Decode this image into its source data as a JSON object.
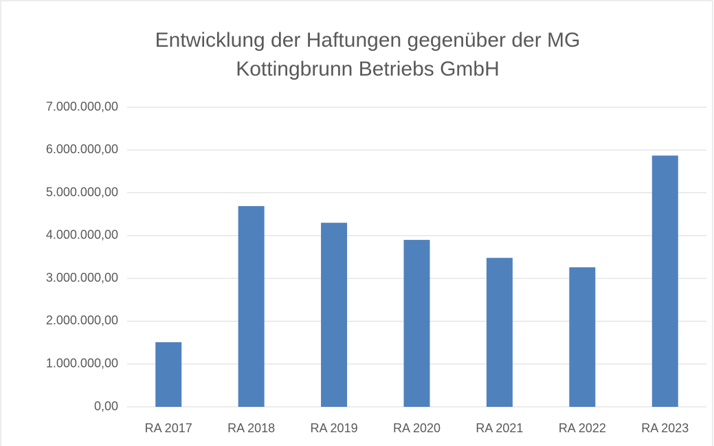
{
  "chart_data": {
    "type": "bar",
    "title": [
      "Entwicklung der Haftungen gegenüber der MG",
      "Kottingbrunn Betriebs GmbH"
    ],
    "categories": [
      "RA 2017",
      "RA 2018",
      "RA 2019",
      "RA 2020",
      "RA 2021",
      "RA 2022",
      "RA 2023"
    ],
    "values": [
      1510000,
      4690000,
      4300000,
      3900000,
      3480000,
      3260000,
      5870000
    ],
    "color": "#4f81bd",
    "ylim": [
      0,
      7000000
    ],
    "yticks": [
      {
        "value": 0,
        "label": "0,00"
      },
      {
        "value": 1000000,
        "label": "1.000.000,00"
      },
      {
        "value": 2000000,
        "label": "2.000.000,00"
      },
      {
        "value": 3000000,
        "label": "3.000.000,00"
      },
      {
        "value": 4000000,
        "label": "4.000.000,00"
      },
      {
        "value": 5000000,
        "label": "5.000.000,00"
      },
      {
        "value": 6000000,
        "label": "6.000.000,00"
      },
      {
        "value": 7000000,
        "label": "7.000.000,00"
      }
    ],
    "grid": true
  }
}
